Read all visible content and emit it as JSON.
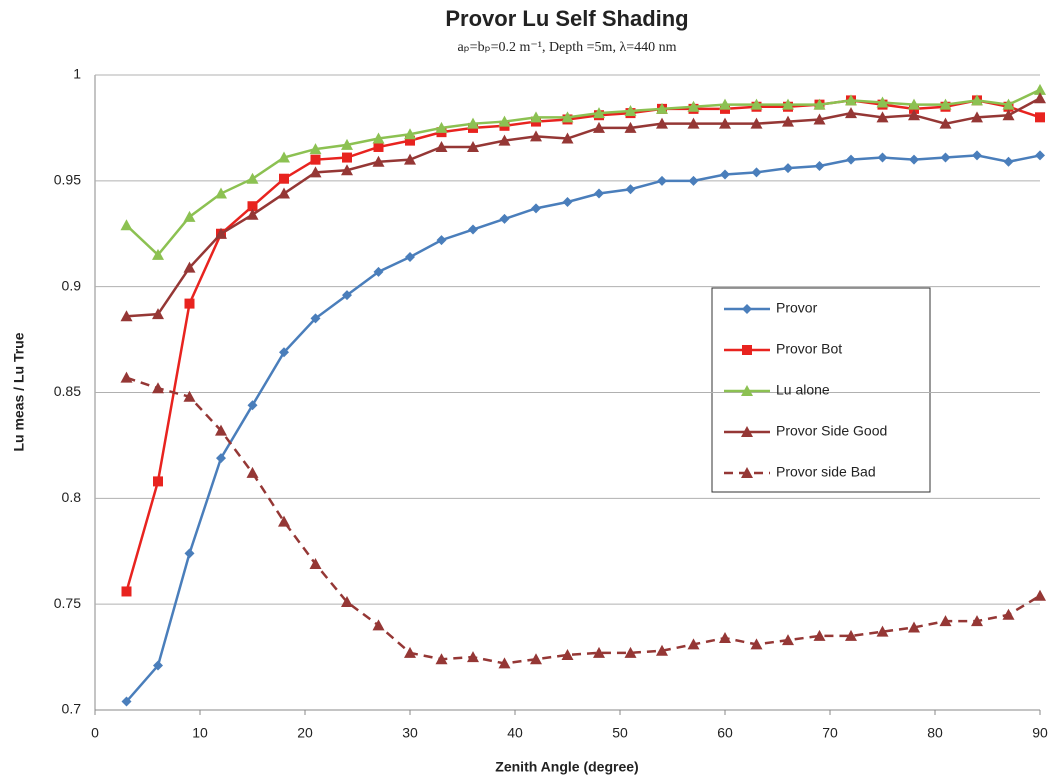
{
  "chart_data": {
    "type": "line",
    "title": "Provor Lu Self Shading",
    "subtitle": "aₚ=bₚ=0.2 m⁻¹, Depth =5m, λ=440 nm",
    "x_label": "Zenith Angle (degree)",
    "y_label": "Lu meas / Lu True",
    "x": [
      3,
      6,
      9,
      12,
      15,
      18,
      21,
      24,
      27,
      30,
      33,
      36,
      39,
      42,
      45,
      48,
      51,
      54,
      57,
      60,
      63,
      66,
      69,
      72,
      75,
      78,
      81,
      84,
      87,
      90
    ],
    "xlim": [
      0,
      90
    ],
    "xticks": [
      0,
      10,
      20,
      30,
      40,
      50,
      60,
      70,
      80,
      90
    ],
    "ylim": [
      0.7,
      1
    ],
    "yticks": [
      0.7,
      0.75,
      0.8,
      0.85,
      0.9,
      0.95,
      1
    ],
    "grid": true,
    "legend": "right",
    "series": [
      {
        "name": "Provor",
        "color": "#4a7ebb",
        "marker": "diamond",
        "dashed": false,
        "values": [
          0.704,
          0.721,
          0.774,
          0.819,
          0.844,
          0.869,
          0.885,
          0.896,
          0.907,
          0.914,
          0.922,
          0.927,
          0.932,
          0.937,
          0.94,
          0.944,
          0.946,
          0.95,
          0.95,
          0.953,
          0.954,
          0.956,
          0.957,
          0.96,
          0.961,
          0.96,
          0.961,
          0.962,
          0.959,
          0.962
        ]
      },
      {
        "name": "Provor Bot",
        "color": "#e8231f",
        "marker": "square",
        "dashed": false,
        "values": [
          0.756,
          0.808,
          0.892,
          0.925,
          0.938,
          0.951,
          0.96,
          0.961,
          0.966,
          0.969,
          0.973,
          0.975,
          0.976,
          0.978,
          0.979,
          0.981,
          0.982,
          0.984,
          0.984,
          0.984,
          0.985,
          0.985,
          0.986,
          0.988,
          0.986,
          0.984,
          0.985,
          0.988,
          0.985,
          0.98
        ]
      },
      {
        "name": "Lu alone",
        "color": "#8cc152",
        "marker": "triangle",
        "dashed": false,
        "values": [
          0.929,
          0.915,
          0.933,
          0.944,
          0.951,
          0.961,
          0.965,
          0.967,
          0.97,
          0.972,
          0.975,
          0.977,
          0.978,
          0.98,
          0.98,
          0.982,
          0.983,
          0.984,
          0.985,
          0.986,
          0.986,
          0.986,
          0.986,
          0.988,
          0.987,
          0.986,
          0.986,
          0.988,
          0.986,
          0.993
        ]
      },
      {
        "name": "Provor Side Good",
        "color": "#953735",
        "marker": "triangle",
        "dashed": false,
        "values": [
          0.886,
          0.887,
          0.909,
          0.925,
          0.934,
          0.944,
          0.954,
          0.955,
          0.959,
          0.96,
          0.966,
          0.966,
          0.969,
          0.971,
          0.97,
          0.975,
          0.975,
          0.977,
          0.977,
          0.977,
          0.977,
          0.978,
          0.979,
          0.982,
          0.98,
          0.981,
          0.977,
          0.98,
          0.981,
          0.989
        ]
      },
      {
        "name": "Provor side Bad",
        "color": "#953735",
        "marker": "triangle",
        "dashed": true,
        "values": [
          0.857,
          0.852,
          0.848,
          0.832,
          0.812,
          0.789,
          0.769,
          0.751,
          0.74,
          0.727,
          0.724,
          0.725,
          0.722,
          0.724,
          0.726,
          0.727,
          0.727,
          0.728,
          0.731,
          0.734,
          0.731,
          0.733,
          0.735,
          0.735,
          0.737,
          0.739,
          0.742,
          0.742,
          0.745,
          0.754
        ]
      }
    ]
  }
}
